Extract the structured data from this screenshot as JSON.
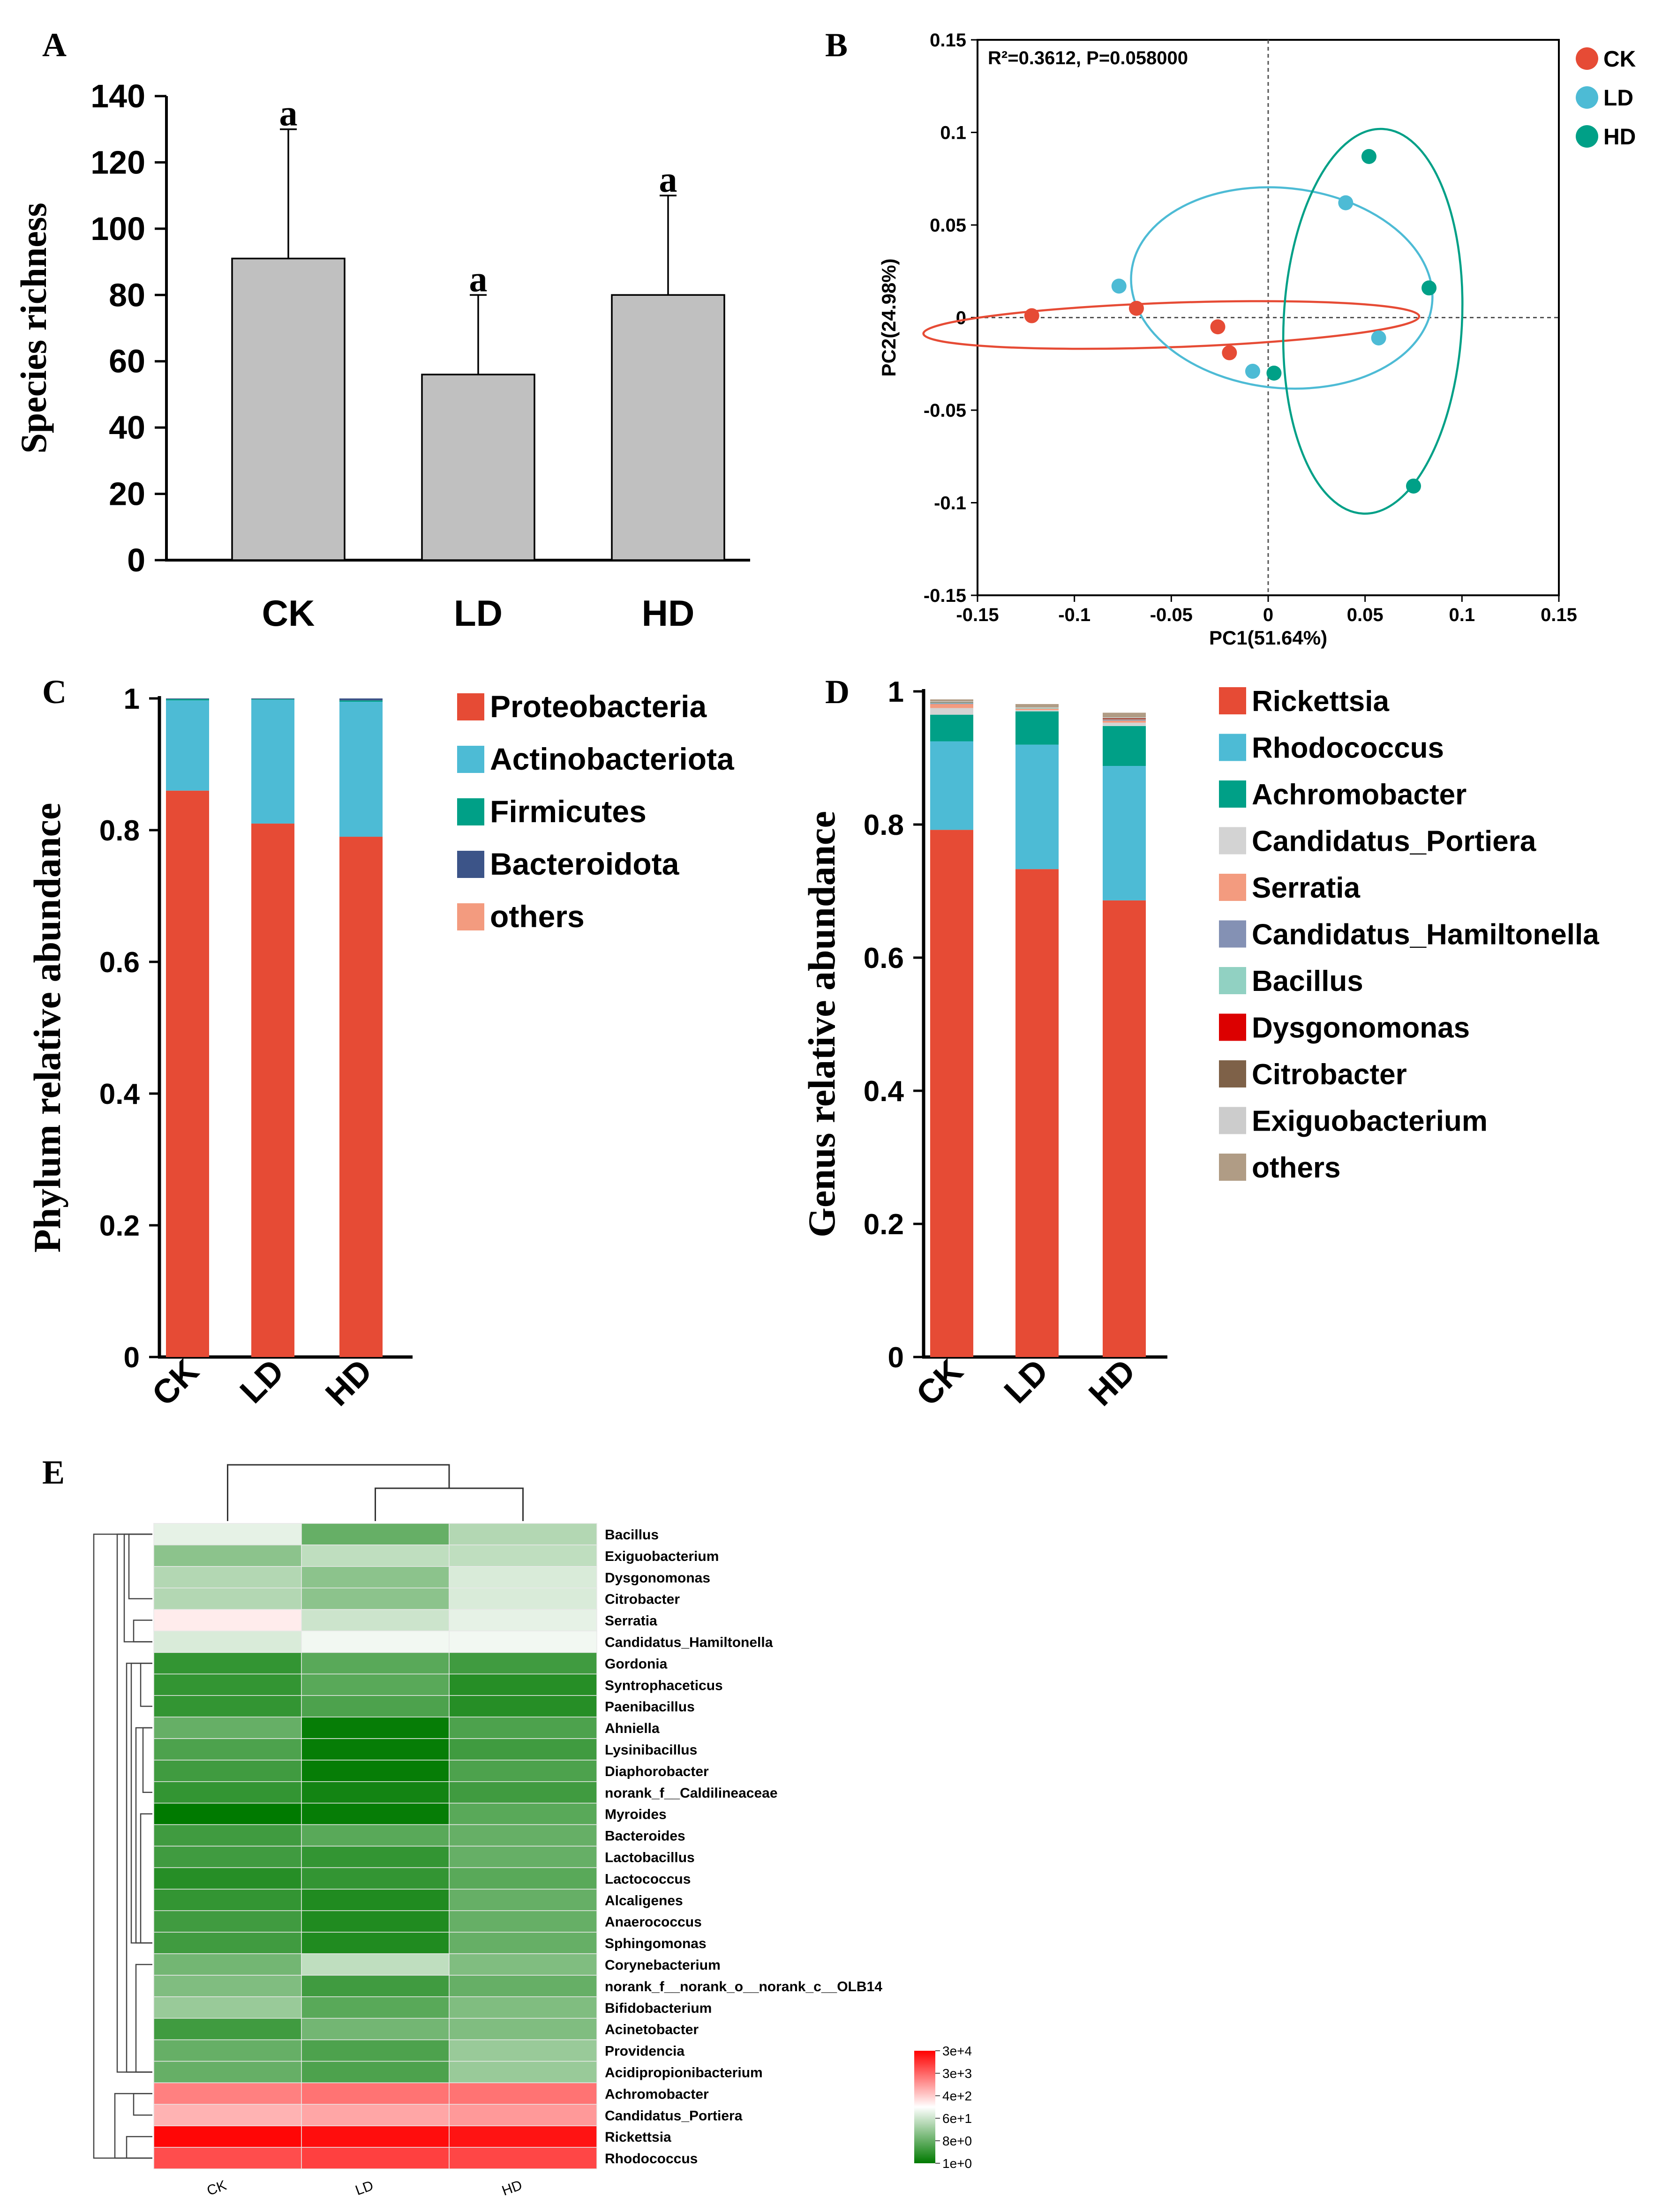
{
  "panel_labels": {
    "A": "A",
    "B": "B",
    "C": "C",
    "D": "D",
    "E": "E"
  },
  "colors": {
    "bar_gray": "#c0c0c0",
    "CK": "#e64b35",
    "LD": "#4dbbd5",
    "HD": "#00a087",
    "heat_low": "#007a00",
    "heat_mid": "#ffffff",
    "heat_high": "#ff0000"
  },
  "chart_data": [
    {
      "id": "A",
      "type": "bar",
      "title": "",
      "categories": [
        "CK",
        "LD",
        "HD"
      ],
      "values": [
        91,
        56,
        80
      ],
      "errors": [
        39,
        24,
        30
      ],
      "significance": [
        "a",
        "a",
        "a"
      ],
      "xlabel": "",
      "ylabel": "Species richness",
      "ylim": [
        0,
        140
      ],
      "yticks": [
        "0",
        "20",
        "40",
        "60",
        "80",
        "100",
        "120",
        "140"
      ]
    },
    {
      "id": "B",
      "type": "scatter",
      "annotation": "R²=0.3612, P=0.058000",
      "xlabel": "PC1(51.64%)",
      "ylabel": "PC2(24.98%)",
      "xlim": [
        -0.15,
        0.15
      ],
      "ylim": [
        -0.15,
        0.15
      ],
      "xticks": [
        "-0.15",
        "-0.1",
        "-0.05",
        "0",
        "0.05",
        "0.1",
        "0.15"
      ],
      "yticks": [
        "-0.15",
        "-0.1",
        "-0.05",
        "0",
        "0.05",
        "0.1",
        "0.15"
      ],
      "legend": [
        "CK",
        "LD",
        "HD"
      ],
      "series": [
        {
          "name": "CK",
          "points": [
            [
              -0.122,
              0.001
            ],
            [
              -0.068,
              0.005
            ],
            [
              -0.026,
              -0.005
            ],
            [
              -0.02,
              -0.019
            ]
          ],
          "ellipse": {
            "cx": -0.05,
            "cy": -0.004,
            "rx": 0.128,
            "ry": 0.012,
            "angle": -2
          }
        },
        {
          "name": "LD",
          "points": [
            [
              -0.077,
              0.017
            ],
            [
              -0.008,
              -0.029
            ],
            [
              0.04,
              0.062
            ],
            [
              0.057,
              -0.011
            ]
          ],
          "ellipse": {
            "cx": 0.007,
            "cy": 0.016,
            "rx": 0.078,
            "ry": 0.054,
            "angle": 6
          }
        },
        {
          "name": "HD",
          "points": [
            [
              0.003,
              -0.03
            ],
            [
              0.052,
              0.087
            ],
            [
              0.075,
              -0.091
            ],
            [
              0.083,
              0.016
            ]
          ],
          "ellipse": {
            "cx": 0.054,
            "cy": -0.002,
            "rx": 0.046,
            "ry": 0.104,
            "angle": 3
          }
        }
      ]
    },
    {
      "id": "C",
      "type": "bar",
      "stacked": true,
      "categories": [
        "CK",
        "LD",
        "HD"
      ],
      "ylabel": "Phylum relative abundance",
      "ylim": [
        0,
        1
      ],
      "yticks": [
        "0",
        "0.2",
        "0.4",
        "0.6",
        "0.8",
        "1"
      ],
      "series": [
        {
          "name": "Proteobacteria",
          "color": "#e64b35",
          "values": [
            0.86,
            0.81,
            0.79
          ]
        },
        {
          "name": "Actinobacteriota",
          "color": "#4dbbd5",
          "values": [
            0.137,
            0.188,
            0.205
          ]
        },
        {
          "name": "Firmicutes",
          "color": "#00a087",
          "values": [
            0.002,
            0.001,
            0.002
          ]
        },
        {
          "name": "Bacteroidota",
          "color": "#3c5488",
          "values": [
            0.001,
            0.001,
            0.003
          ]
        },
        {
          "name": "others",
          "color": "#f39b7f",
          "values": [
            0.0,
            0.0,
            0.0
          ]
        }
      ]
    },
    {
      "id": "D",
      "type": "bar",
      "stacked": true,
      "categories": [
        "CK",
        "LD",
        "HD"
      ],
      "ylabel": "Genus relative abundance",
      "ylim": [
        0,
        1
      ],
      "yticks": [
        "0",
        "0.2",
        "0.4",
        "0.6",
        "0.8",
        "1"
      ],
      "series": [
        {
          "name": "Rickettsia",
          "color": "#e64b35",
          "values": [
            0.792,
            0.733,
            0.686
          ]
        },
        {
          "name": "Rhodococcus",
          "color": "#4dbbd5",
          "values": [
            0.133,
            0.187,
            0.202
          ]
        },
        {
          "name": "Achromobacter",
          "color": "#00a087",
          "values": [
            0.04,
            0.05,
            0.06
          ]
        },
        {
          "name": "Candidatus_Portiera",
          "color": "#d3d3d3",
          "values": [
            0.01,
            0.002,
            0.005
          ]
        },
        {
          "name": "Serratia",
          "color": "#f39b7f",
          "values": [
            0.006,
            0.002,
            0.003
          ]
        },
        {
          "name": "Candidatus_Hamiltonella",
          "color": "#8491b4",
          "values": [
            0.001,
            0.0,
            0.001
          ]
        },
        {
          "name": "Bacillus",
          "color": "#91d1c2",
          "values": [
            0.001,
            0.001,
            0.001
          ]
        },
        {
          "name": "Dysgonomonas",
          "color": "#dc0000",
          "values": [
            0.0,
            0.0,
            0.001
          ]
        },
        {
          "name": "Citrobacter",
          "color": "#7e6148",
          "values": [
            0.001,
            0.0,
            0.001
          ]
        },
        {
          "name": "Exiguobacterium",
          "color": "#cccccc",
          "values": [
            0.001,
            0.001,
            0.001
          ]
        },
        {
          "name": "others",
          "color": "#b09c85",
          "values": [
            0.003,
            0.005,
            0.007
          ]
        }
      ]
    },
    {
      "id": "E",
      "type": "heatmap",
      "columns": [
        "CK",
        "LD",
        "HD"
      ],
      "rows": [
        "Bacillus",
        "Exiguobacterium",
        "Dysgonomonas",
        "Citrobacter",
        "Serratia",
        "Candidatus_Hamiltonella",
        "Gordonia",
        "Syntrophaceticus",
        "Paenibacillus",
        "Ahniella",
        "Lysinibacillus",
        "Diaphorobacter",
        "norank_f__Caldilineaceae",
        "Myroides",
        "Bacteroides",
        "Lactobacillus",
        "Lactococcus",
        "Alcaligenes",
        "Anaerococcus",
        "Sphingomonas",
        "Corynebacterium",
        "norank_f__norank_o__norank_c__OLB14",
        "Bifidobacterium",
        "Acinetobacter",
        "Providencia",
        "Acidipropionibacterium",
        "Achromobacter",
        "Candidatus_Portiera",
        "Rickettsia",
        "Rhodococcus"
      ],
      "scale": [
        -2.0,
        2.0
      ],
      "values": [
        [
          -0.2,
          -1.2,
          -0.6
        ],
        [
          -0.9,
          -0.5,
          -0.5
        ],
        [
          -0.6,
          -0.9,
          -0.3
        ],
        [
          -0.6,
          -0.9,
          -0.3
        ],
        [
          0.15,
          -0.4,
          -0.2
        ],
        [
          -0.3,
          -0.1,
          -0.1
        ],
        [
          -1.6,
          -1.3,
          -1.5
        ],
        [
          -1.6,
          -1.3,
          -1.7
        ],
        [
          -1.6,
          -1.4,
          -1.7
        ],
        [
          -1.2,
          -1.95,
          -1.4
        ],
        [
          -1.4,
          -1.95,
          -1.5
        ],
        [
          -1.5,
          -1.95,
          -1.4
        ],
        [
          -1.6,
          -1.85,
          -1.5
        ],
        [
          -2.0,
          -1.95,
          -1.3
        ],
        [
          -1.5,
          -1.3,
          -1.2
        ],
        [
          -1.5,
          -1.6,
          -1.2
        ],
        [
          -1.7,
          -1.6,
          -1.3
        ],
        [
          -1.6,
          -1.75,
          -1.2
        ],
        [
          -1.5,
          -1.75,
          -1.2
        ],
        [
          -1.5,
          -1.75,
          -1.2
        ],
        [
          -1.1,
          -0.5,
          -1.0
        ],
        [
          -1.0,
          -1.5,
          -1.2
        ],
        [
          -0.8,
          -1.3,
          -1.0
        ],
        [
          -1.5,
          -1.1,
          -1.0
        ],
        [
          -1.2,
          -1.4,
          -0.8
        ],
        [
          -1.2,
          -1.4,
          -0.8
        ],
        [
          1.0,
          1.1,
          1.1
        ],
        [
          0.6,
          0.7,
          0.8
        ],
        [
          1.95,
          1.9,
          1.85
        ],
        [
          1.4,
          1.5,
          1.45
        ]
      ],
      "legend_ticks": [
        "3e+4",
        "3e+3",
        "4e+2",
        "6e+1",
        "8e+0",
        "1e+0"
      ]
    }
  ]
}
